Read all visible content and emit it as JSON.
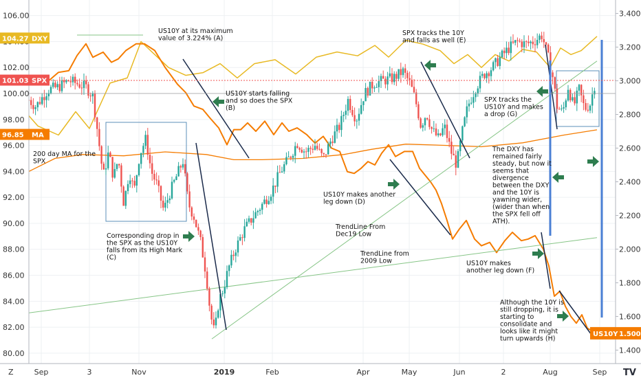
{
  "chart_data": {
    "type": "line",
    "title": "",
    "x_ticks": [
      "Sep",
      "3",
      "Nov",
      "2019",
      "Feb",
      "Apr",
      "May",
      "Jun",
      "2",
      "Aug",
      "Sep"
    ],
    "left_axis": {
      "ticks": [
        "106.00",
        "104.00",
        "102.00",
        "100.00",
        "98.00",
        "96.00",
        "94.00",
        "92.00",
        "90.00",
        "88.00",
        "86.00",
        "84.00",
        "82.00",
        "80.00"
      ],
      "ylim": [
        79.2,
        107.2
      ]
    },
    "right_axis": {
      "ticks": [
        "3.400",
        "3.200",
        "3.000",
        "2.800",
        "2.600",
        "2.400",
        "2.200",
        "2.000",
        "1.800",
        "1.600",
        "1.400"
      ],
      "ylim": [
        1.32,
        3.48
      ]
    },
    "series": [
      {
        "name": "DXY",
        "axis": "left",
        "color": "#e8b923",
        "last_value": "104.27",
        "values": [
          [
            0,
            98.2
          ],
          [
            12,
            98.8
          ],
          [
            30,
            99.0
          ],
          [
            55,
            97.5
          ],
          [
            85,
            96.8
          ],
          [
            110,
            98.6
          ],
          [
            130,
            97.3
          ],
          [
            160,
            100.8
          ],
          [
            185,
            101.2
          ],
          [
            205,
            104.0
          ],
          [
            225,
            103.0
          ],
          [
            245,
            102.0
          ],
          [
            270,
            101.4
          ],
          [
            295,
            101.6
          ],
          [
            320,
            102.3
          ],
          [
            345,
            101.2
          ],
          [
            370,
            102.3
          ],
          [
            400,
            102.6
          ],
          [
            430,
            101.5
          ],
          [
            460,
            102.8
          ],
          [
            490,
            103.2
          ],
          [
            520,
            102.9
          ],
          [
            545,
            103.7
          ],
          [
            565,
            102.8
          ],
          [
            590,
            104.1
          ],
          [
            615,
            103.8
          ],
          [
            640,
            103.3
          ],
          [
            660,
            102.3
          ],
          [
            680,
            103.0
          ],
          [
            700,
            102.0
          ],
          [
            720,
            103.0
          ],
          [
            740,
            102.5
          ],
          [
            760,
            103.4
          ],
          [
            780,
            103.2
          ],
          [
            800,
            102.0
          ],
          [
            815,
            103.5
          ],
          [
            830,
            103.0
          ],
          [
            845,
            103.3
          ],
          [
            868,
            104.4
          ]
        ]
      },
      {
        "name": "SPX",
        "axis": "left",
        "color": "#26a69a",
        "color_down": "#ef5350",
        "last_value": "101.03",
        "values": [
          [
            42,
            99.5
          ],
          [
            52,
            99.0
          ],
          [
            70,
            100.3
          ],
          [
            85,
            100.5
          ],
          [
            100,
            101.0
          ],
          [
            115,
            100.7
          ],
          [
            125,
            100.5
          ],
          [
            135,
            99.8
          ],
          [
            142,
            97.0
          ],
          [
            150,
            93.6
          ],
          [
            158,
            95.5
          ],
          [
            165,
            93.5
          ],
          [
            172,
            95.0
          ],
          [
            180,
            91.5
          ],
          [
            188,
            94.0
          ],
          [
            195,
            92.5
          ],
          [
            203,
            95.3
          ],
          [
            212,
            96.5
          ],
          [
            220,
            94.0
          ],
          [
            228,
            93.0
          ],
          [
            238,
            91.0
          ],
          [
            248,
            92.5
          ],
          [
            258,
            93.8
          ],
          [
            266,
            94.8
          ],
          [
            274,
            91.5
          ],
          [
            282,
            90.5
          ],
          [
            292,
            88.5
          ],
          [
            300,
            86.0
          ],
          [
            306,
            83.0
          ],
          [
            312,
            81.5
          ],
          [
            318,
            84.0
          ],
          [
            325,
            85.0
          ],
          [
            332,
            86.5
          ],
          [
            342,
            88.0
          ],
          [
            355,
            89.5
          ],
          [
            368,
            90.5
          ],
          [
            382,
            91.5
          ],
          [
            395,
            92.5
          ],
          [
            408,
            94.0
          ],
          [
            420,
            95.0
          ],
          [
            432,
            96.2
          ],
          [
            444,
            95.5
          ],
          [
            458,
            96.0
          ],
          [
            470,
            95.0
          ],
          [
            482,
            96.5
          ],
          [
            494,
            97.5
          ],
          [
            506,
            99.5
          ],
          [
            518,
            98.0
          ],
          [
            530,
            100.0
          ],
          [
            544,
            100.8
          ],
          [
            558,
            101.0
          ],
          [
            572,
            101.2
          ],
          [
            586,
            101.7
          ],
          [
            596,
            100.8
          ],
          [
            604,
            99.5
          ],
          [
            612,
            97.5
          ],
          [
            620,
            98.5
          ],
          [
            628,
            97.2
          ],
          [
            638,
            96.5
          ],
          [
            646,
            97.5
          ],
          [
            656,
            95.5
          ],
          [
            664,
            94.5
          ],
          [
            672,
            97.0
          ],
          [
            680,
            99.0
          ],
          [
            692,
            100.5
          ],
          [
            704,
            101.5
          ],
          [
            716,
            102.0
          ],
          [
            728,
            102.8
          ],
          [
            740,
            103.5
          ],
          [
            752,
            104.0
          ],
          [
            764,
            103.8
          ],
          [
            776,
            104.0
          ],
          [
            788,
            104.5
          ],
          [
            796,
            103.0
          ],
          [
            803,
            101.5
          ],
          [
            810,
            99.0
          ],
          [
            818,
            98.5
          ],
          [
            826,
            100.5
          ],
          [
            834,
            99.0
          ],
          [
            842,
            100.3
          ],
          [
            850,
            98.8
          ],
          [
            858,
            99.2
          ],
          [
            866,
            101.0
          ]
        ]
      },
      {
        "name": "US10Y",
        "axis": "right",
        "color": "#f57c00",
        "last_value": "1.500",
        "values": [
          [
            42,
            3.03
          ],
          [
            65,
            2.98
          ],
          [
            85,
            3.05
          ],
          [
            100,
            3.06
          ],
          [
            112,
            3.15
          ],
          [
            125,
            3.22
          ],
          [
            135,
            3.14
          ],
          [
            150,
            3.17
          ],
          [
            162,
            3.11
          ],
          [
            172,
            3.13
          ],
          [
            183,
            3.18
          ],
          [
            198,
            3.22
          ],
          [
            210,
            3.22
          ],
          [
            225,
            3.18
          ],
          [
            240,
            3.08
          ],
          [
            258,
            2.98
          ],
          [
            270,
            2.93
          ],
          [
            282,
            2.85
          ],
          [
            295,
            2.83
          ],
          [
            305,
            2.78
          ],
          [
            318,
            2.72
          ],
          [
            330,
            2.62
          ],
          [
            340,
            2.71
          ],
          [
            350,
            2.71
          ],
          [
            360,
            2.75
          ],
          [
            372,
            2.7
          ],
          [
            385,
            2.76
          ],
          [
            398,
            2.68
          ],
          [
            410,
            2.75
          ],
          [
            420,
            2.7
          ],
          [
            432,
            2.72
          ],
          [
            446,
            2.68
          ],
          [
            458,
            2.63
          ],
          [
            470,
            2.67
          ],
          [
            482,
            2.6
          ],
          [
            494,
            2.58
          ],
          [
            505,
            2.46
          ],
          [
            515,
            2.45
          ],
          [
            525,
            2.48
          ],
          [
            535,
            2.52
          ],
          [
            545,
            2.5
          ],
          [
            555,
            2.57
          ],
          [
            565,
            2.62
          ],
          [
            575,
            2.55
          ],
          [
            588,
            2.58
          ],
          [
            600,
            2.58
          ],
          [
            610,
            2.48
          ],
          [
            618,
            2.44
          ],
          [
            626,
            2.4
          ],
          [
            634,
            2.35
          ],
          [
            642,
            2.27
          ],
          [
            650,
            2.17
          ],
          [
            658,
            2.06
          ],
          [
            668,
            2.12
          ],
          [
            678,
            2.17
          ],
          [
            690,
            2.06
          ],
          [
            700,
            2.02
          ],
          [
            712,
            2.04
          ],
          [
            722,
            1.98
          ],
          [
            734,
            2.05
          ],
          [
            745,
            2.1
          ],
          [
            758,
            2.05
          ],
          [
            768,
            2.06
          ],
          [
            778,
            2.08
          ],
          [
            790,
            2.0
          ],
          [
            798,
            1.9
          ],
          [
            806,
            1.72
          ],
          [
            814,
            1.75
          ],
          [
            822,
            1.66
          ],
          [
            830,
            1.6
          ],
          [
            838,
            1.56
          ],
          [
            846,
            1.61
          ],
          [
            854,
            1.53
          ],
          [
            868,
            1.5
          ]
        ]
      },
      {
        "name": "MA",
        "axis": "left",
        "color": "#f57c00",
        "last_value": "96.85",
        "values": [
          [
            42,
            94.0
          ],
          [
            80,
            95.0
          ],
          [
            120,
            95.3
          ],
          [
            180,
            95.2
          ],
          [
            240,
            95.5
          ],
          [
            300,
            95.3
          ],
          [
            340,
            94.9
          ],
          [
            380,
            94.9
          ],
          [
            440,
            95.0
          ],
          [
            500,
            95.3
          ],
          [
            540,
            95.7
          ],
          [
            590,
            96.1
          ],
          [
            650,
            96.0
          ],
          [
            700,
            95.9
          ],
          [
            760,
            96.2
          ],
          [
            820,
            96.8
          ],
          [
            868,
            97.2
          ]
        ]
      },
      {
        "name": "",
        "axis": "left",
        "color": "#86c586",
        "values": [
          [
            42,
            83.1
          ],
          [
            868,
            88.9
          ]
        ]
      },
      {
        "name": "",
        "axis": "left",
        "color": "#86c586",
        "values": [
          [
            308,
            81.1
          ],
          [
            868,
            102.5
          ]
        ]
      }
    ],
    "left_badges": [
      {
        "label": "DXY",
        "value": "104.27",
        "color": "#e8b923"
      },
      {
        "label": "SPX",
        "value": "101.03",
        "color": "#ef5350"
      },
      {
        "label": "MA",
        "value": "96.85",
        "color": "#f57c00"
      }
    ],
    "right_badge": {
      "label": "US10Y",
      "value": "1.500",
      "color": "#f57c00"
    },
    "annotations": [
      {
        "lines": [
          "US10Y at its maximum",
          "value of 3.224% (A)"
        ],
        "x": 230,
        "y": 48
      },
      {
        "lines": [
          "US10Y starts falling",
          "and so does the SPX",
          "(B)"
        ],
        "x": 328,
        "y": 139
      },
      {
        "lines": [
          "200 day MA for the",
          "SPX"
        ],
        "x": 48,
        "y": 227
      },
      {
        "lines": [
          "Corresponding drop in",
          "the SPX as the US10Y",
          "falls from its High Mark",
          "(C)"
        ],
        "x": 155,
        "y": 346
      },
      {
        "lines": [
          "SPX tracks the 10Y",
          "and falls as well (E)"
        ],
        "x": 585,
        "y": 51
      },
      {
        "lines": [
          "US10Y makes another",
          "leg down (D)"
        ],
        "x": 470,
        "y": 286
      },
      {
        "lines": [
          "TrendLine From",
          "Dec19 Low"
        ],
        "x": 488,
        "y": 333
      },
      {
        "lines": [
          "TrendLine from",
          "2009 Low"
        ],
        "x": 524,
        "y": 372
      },
      {
        "lines": [
          "SPX tracks the",
          "US10Y and makes",
          "a drop (G)"
        ],
        "x": 704,
        "y": 148
      },
      {
        "lines": [
          "The DXY has",
          "remained fairly",
          "steady, but now it",
          "seems that",
          "divergence",
          "between the DXY",
          "and the 10Y is",
          "yawning wider,",
          "(wider than when",
          "the SPX fell off",
          "ATH)."
        ],
        "x": 716,
        "y": 220
      },
      {
        "lines": [
          "US10Y makes",
          "another leg down (F)"
        ],
        "x": 678,
        "y": 386
      },
      {
        "lines": [
          "Although the 10Y is",
          "still dropping, it is",
          "starting to",
          "consolidate and",
          "looks like it might",
          "turn upwards (H)"
        ],
        "x": 727,
        "y": 443
      }
    ],
    "grid": true,
    "legend": "none",
    "footer": {
      "left_button": "Z",
      "right_logo": "TV"
    }
  }
}
